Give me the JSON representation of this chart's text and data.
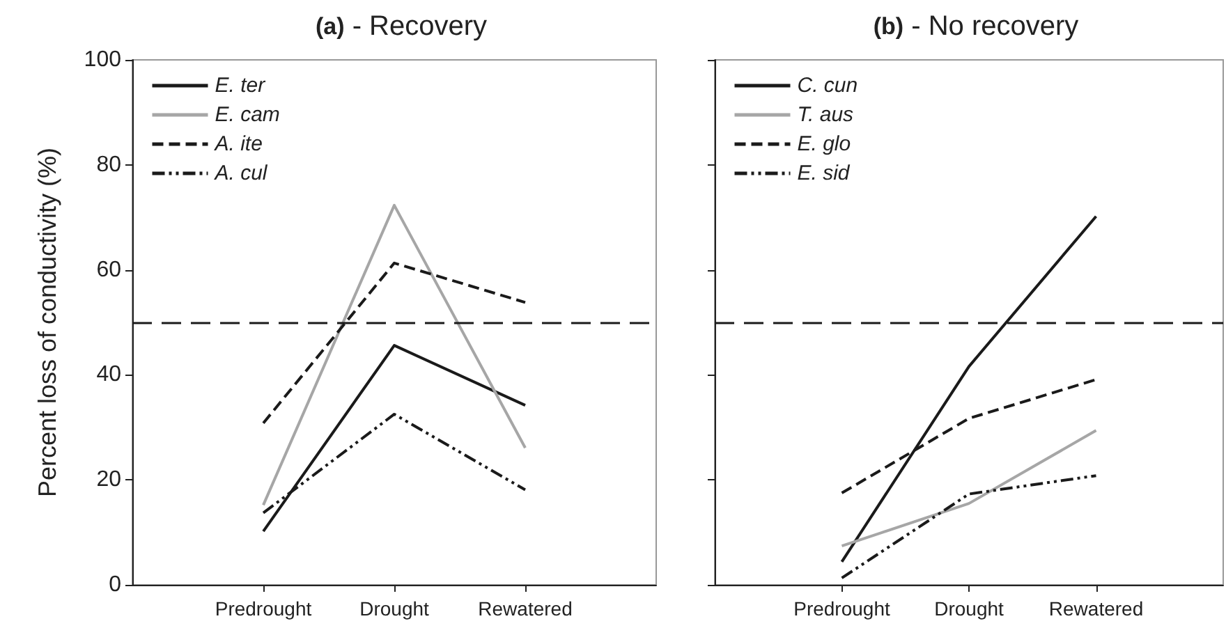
{
  "chart_data": [
    {
      "type": "line",
      "title": "(a) - Recovery",
      "ylabel": "Percent loss of conductivity (%)",
      "categories": [
        "Predrought",
        "Drought",
        "Rewatered"
      ],
      "ylim": [
        0,
        100
      ],
      "yticks": [
        0,
        20,
        40,
        60,
        80,
        100
      ],
      "grid": false,
      "legend": "top left",
      "marker": "none",
      "series": [
        {
          "name": "E. ter",
          "color": "#1a1a1a",
          "line_style": "solid",
          "values": [
            10.2,
            45.6,
            34.2
          ]
        },
        {
          "name": "E. cam",
          "color": "#a6a6a6",
          "line_style": "solid",
          "values": [
            15.2,
            72.3,
            26.1
          ]
        },
        {
          "name": "A. ite",
          "color": "#1a1a1a",
          "line_style": "dashed",
          "values": [
            30.8,
            61.3,
            53.8
          ]
        },
        {
          "name": "A. cul",
          "color": "#1a1a1a",
          "line_style": "dashdot",
          "values": [
            13.7,
            32.5,
            18.1
          ]
        }
      ],
      "ref_lines": [
        {
          "axis": "y",
          "value": 50,
          "color": "#1a1a1a",
          "line_style": "dashed"
        }
      ]
    },
    {
      "type": "line",
      "title": "(b) - No recovery",
      "categories": [
        "Predrought",
        "Drought",
        "Rewatered"
      ],
      "ylim": [
        0,
        100
      ],
      "yticks": [
        0,
        20,
        40,
        60,
        80,
        100
      ],
      "tick_labels": "x",
      "grid": false,
      "legend": "top left",
      "marker": "none",
      "series": [
        {
          "name": "C. cun",
          "color": "#1a1a1a",
          "line_style": "solid",
          "values": [
            4.4,
            41.6,
            70.2
          ]
        },
        {
          "name": "T. aus",
          "color": "#a6a6a6",
          "line_style": "solid",
          "values": [
            7.4,
            15.5,
            29.4
          ]
        },
        {
          "name": "E. glo",
          "color": "#1a1a1a",
          "line_style": "dashed",
          "values": [
            17.5,
            31.7,
            39.1
          ]
        },
        {
          "name": "E. sid",
          "color": "#1a1a1a",
          "line_style": "dashdot",
          "values": [
            1.3,
            17.3,
            20.8
          ]
        }
      ],
      "ref_lines": [
        {
          "axis": "y",
          "value": 50,
          "color": "#1a1a1a",
          "line_style": "dashed"
        }
      ]
    }
  ]
}
